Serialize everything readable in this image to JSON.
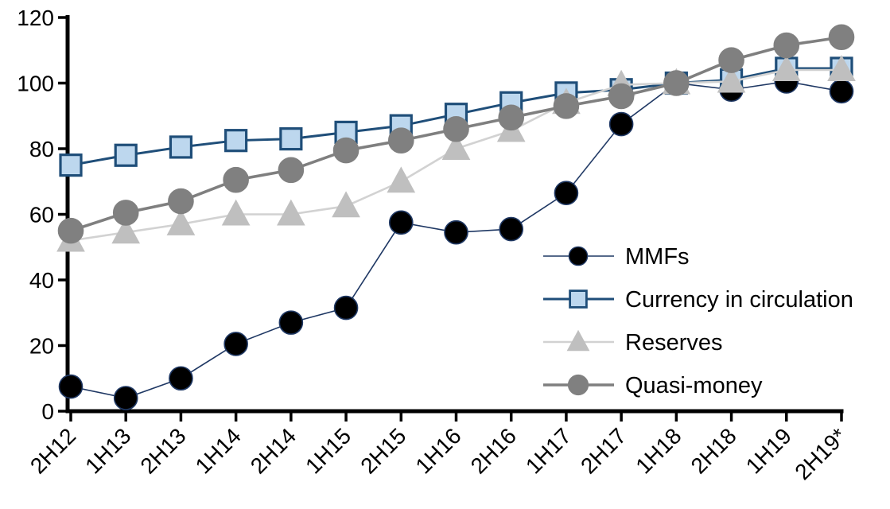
{
  "chart_data": {
    "type": "line",
    "title": "",
    "xlabel": "",
    "ylabel": "",
    "categories": [
      "2H12",
      "1H13",
      "2H13",
      "1H14",
      "2H14",
      "1H15",
      "2H15",
      "1H16",
      "2H16",
      "1H17",
      "2H17",
      "1H18",
      "2H18",
      "1H19",
      "2H19*"
    ],
    "series": [
      {
        "name": "MMFs",
        "values": [
          7.5,
          4,
          10,
          20.5,
          27,
          31.5,
          57.5,
          54.5,
          55.5,
          66.5,
          87.5,
          100,
          98,
          100.5,
          97.5
        ],
        "marker": "circle",
        "marker_fill": "#000000",
        "marker_stroke": "#1f3864",
        "marker_size": 29,
        "line_color": "#1f3864",
        "line_width": 1.6
      },
      {
        "name": "Currency in circulation",
        "values": [
          75,
          78,
          80.5,
          82.5,
          83,
          85,
          87,
          90.5,
          94,
          97,
          98,
          100,
          101,
          104.5,
          104.5
        ],
        "marker": "square",
        "marker_fill": "#bdd7ee",
        "marker_stroke": "#1f4e79",
        "marker_size": 26,
        "line_color": "#1f4e79",
        "line_width": 3
      },
      {
        "name": "Reserves",
        "values": [
          52,
          54.5,
          57,
          60,
          60,
          62.5,
          70,
          80,
          85.5,
          94,
          99.5,
          100,
          100.5,
          104,
          104
        ],
        "marker": "triangle",
        "marker_fill": "#bfbfbf",
        "marker_stroke": "#bfbfbf",
        "marker_size": 33,
        "line_color": "#d2d2d2",
        "line_width": 2.6
      },
      {
        "name": "Quasi-money",
        "values": [
          55,
          60.5,
          64,
          70.5,
          73.5,
          79.5,
          82.5,
          86,
          89.5,
          93,
          96,
          100,
          107,
          111.5,
          114
        ],
        "marker": "circle",
        "marker_fill": "#808080",
        "marker_stroke": "#808080",
        "marker_size": 31,
        "line_color": "#7f7f7f",
        "line_width": 3.6
      }
    ],
    "ylim": [
      0,
      120
    ],
    "ytick_step": 20,
    "yticks": [
      "0",
      "20",
      "40",
      "60",
      "80",
      "100",
      "120"
    ],
    "grid": "off",
    "legend_position": "inside-right",
    "axis_color": "#000000",
    "background_color": "#ffffff"
  }
}
